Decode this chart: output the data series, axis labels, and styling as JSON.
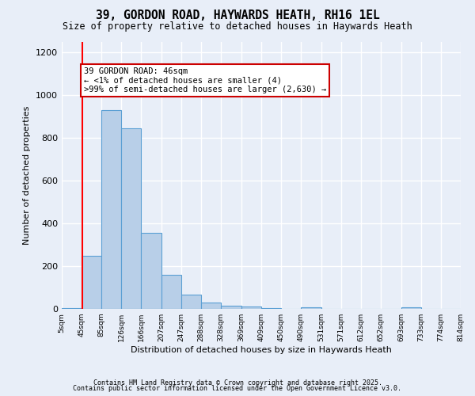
{
  "title": "39, GORDON ROAD, HAYWARDS HEATH, RH16 1EL",
  "subtitle": "Size of property relative to detached houses in Haywards Heath",
  "xlabel": "Distribution of detached houses by size in Haywards Heath",
  "ylabel": "Number of detached properties",
  "bins": [
    5,
    45,
    85,
    126,
    166,
    207,
    247,
    288,
    328,
    369,
    409,
    450,
    490,
    531,
    571,
    612,
    652,
    693,
    733,
    774,
    814
  ],
  "counts": [
    4,
    250,
    930,
    845,
    355,
    160,
    65,
    30,
    15,
    10,
    5,
    0,
    8,
    0,
    0,
    0,
    0,
    8,
    0,
    0
  ],
  "bar_color": "#b8cfe8",
  "bar_edge_color": "#5a9fd4",
  "red_line_x": 46,
  "annotation_text": "39 GORDON ROAD: 46sqm\n← <1% of detached houses are smaller (4)\n>99% of semi-detached houses are larger (2,630) →",
  "annotation_box_color": "#ffffff",
  "annotation_box_edge": "#cc0000",
  "ylim": [
    0,
    1250
  ],
  "yticks": [
    0,
    200,
    400,
    600,
    800,
    1000,
    1200
  ],
  "footer1": "Contains HM Land Registry data © Crown copyright and database right 2025.",
  "footer2": "Contains public sector information licensed under the Open Government Licence v3.0.",
  "bg_color": "#e8eef8",
  "plot_bg_color": "#e8eef8",
  "grid_color": "#ffffff",
  "tick_labels": [
    "5sqm",
    "45sqm",
    "85sqm",
    "126sqm",
    "166sqm",
    "207sqm",
    "247sqm",
    "288sqm",
    "328sqm",
    "369sqm",
    "409sqm",
    "450sqm",
    "490sqm",
    "531sqm",
    "571sqm",
    "612sqm",
    "652sqm",
    "693sqm",
    "733sqm",
    "774sqm",
    "814sqm"
  ]
}
